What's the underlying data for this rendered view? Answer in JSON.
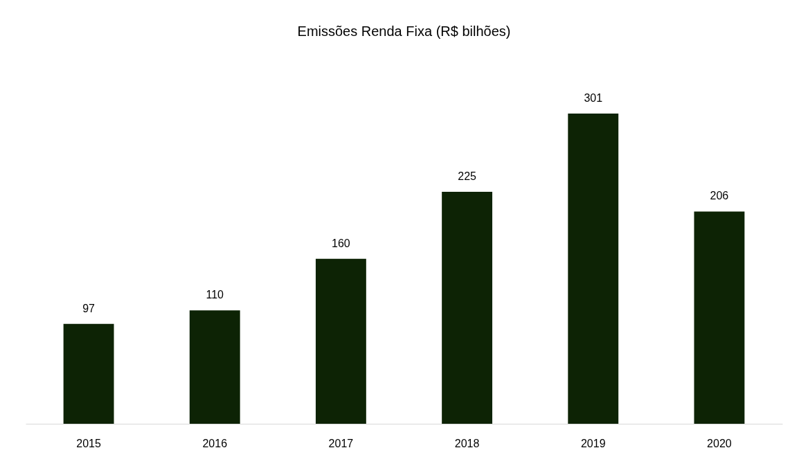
{
  "chart_data": {
    "type": "bar",
    "title": "Emissões Renda Fixa (R$ bilhões)",
    "categories": [
      "2015",
      "2016",
      "2017",
      "2018",
      "2019",
      "2020"
    ],
    "values": [
      97,
      110,
      160,
      225,
      301,
      206
    ],
    "color": "#0d2305",
    "data_labels": true
  }
}
